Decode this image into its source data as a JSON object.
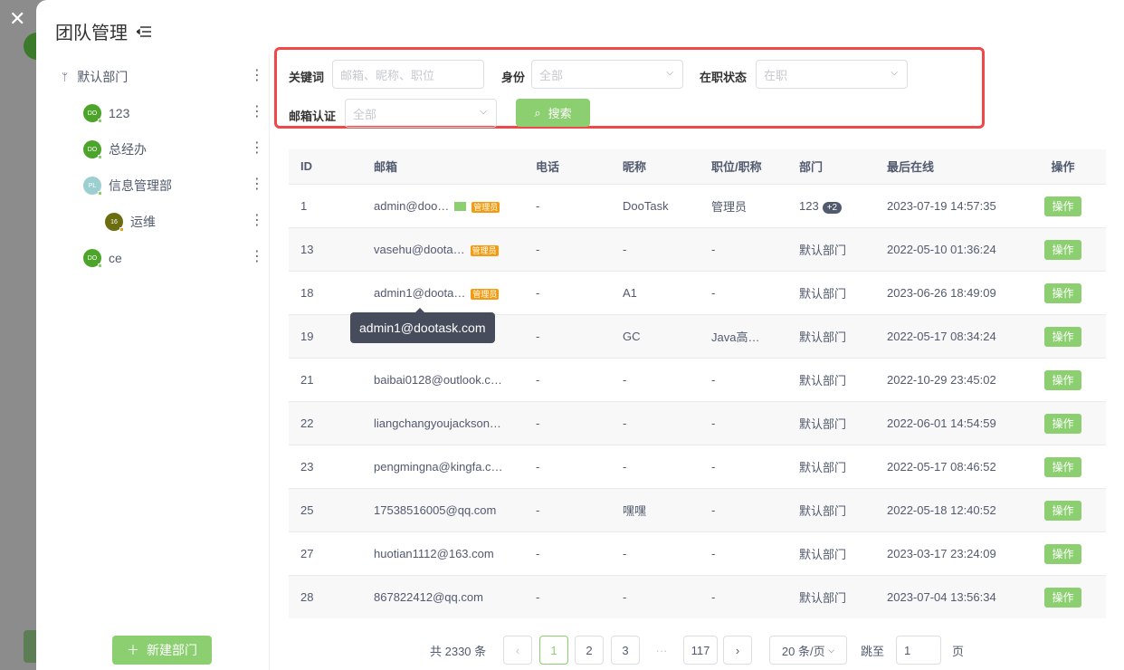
{
  "title": "团队管理",
  "close_label": "✕",
  "departments": [
    {
      "name": "默认部门",
      "icon": "org-tree-icon"
    },
    {
      "name": "123",
      "avatar": "DO",
      "color": "#4ca42a"
    },
    {
      "name": "总经办",
      "avatar": "DO",
      "color": "#4ca42a"
    },
    {
      "name": "信息管理部",
      "avatar": "PL",
      "color": "#9ccfd0"
    },
    {
      "name": "运维",
      "avatar": "16",
      "color": "#6c6c10"
    },
    {
      "name": "ce",
      "avatar": "DO",
      "color": "#4ca42a"
    }
  ],
  "new_dept_label": "新建部门",
  "filter": {
    "keyword_label": "关键词",
    "keyword_placeholder": "邮箱、昵称、职位",
    "identity_label": "身份",
    "identity_value": "全部",
    "status_label": "在职状态",
    "status_value": "在职",
    "email_label": "邮箱认证",
    "email_value": "全部",
    "search_label": "搜索"
  },
  "table": {
    "headers": [
      "ID",
      "邮箱",
      "电话",
      "昵称",
      "职位/职称",
      "部门",
      "最后在线",
      "操作"
    ],
    "rows": [
      {
        "id": "1",
        "email": "admin@doo…",
        "verified": true,
        "admin": "管理员",
        "phone": "-",
        "nick": "DooTask",
        "pos": "管理员",
        "dept": "123",
        "extra": "+2",
        "online": "2023-07-19 14:57:35",
        "op": "操作"
      },
      {
        "id": "13",
        "email": "vasehu@doota…",
        "admin": "管理员",
        "phone": "-",
        "nick": "-",
        "pos": "-",
        "dept": "默认部门",
        "online": "2022-05-10 01:36:24",
        "op": "操作"
      },
      {
        "id": "18",
        "email": "admin1@doota…",
        "admin": "管理员",
        "phone": "-",
        "nick": "A1",
        "pos": "-",
        "dept": "默认部门",
        "online": "2023-06-26 18:49:09",
        "op": "操作"
      },
      {
        "id": "19",
        "email": "",
        "phone": "-",
        "nick": "GC",
        "pos": "Java高…",
        "dept": "默认部门",
        "online": "2022-05-17 08:34:24",
        "op": "操作"
      },
      {
        "id": "21",
        "email": "baibai0128@outlook.c…",
        "phone": "-",
        "nick": "-",
        "pos": "-",
        "dept": "默认部门",
        "online": "2022-10-29 23:45:02",
        "op": "操作"
      },
      {
        "id": "22",
        "email": "liangchangyoujackson…",
        "phone": "-",
        "nick": "-",
        "pos": "-",
        "dept": "默认部门",
        "online": "2022-06-01 14:54:59",
        "op": "操作"
      },
      {
        "id": "23",
        "email": "pengmingna@kingfa.c…",
        "phone": "-",
        "nick": "-",
        "pos": "-",
        "dept": "默认部门",
        "online": "2022-05-17 08:46:52",
        "op": "操作"
      },
      {
        "id": "25",
        "email": "17538516005@qq.com",
        "phone": "-",
        "nick": "嘿嘿",
        "pos": "-",
        "dept": "默认部门",
        "online": "2022-05-18 12:40:52",
        "op": "操作"
      },
      {
        "id": "27",
        "email": "huotian1112@163.com",
        "phone": "-",
        "nick": "-",
        "pos": "-",
        "dept": "默认部门",
        "online": "2023-03-17 23:24:09",
        "op": "操作"
      },
      {
        "id": "28",
        "email": "867822412@qq.com",
        "phone": "-",
        "nick": "-",
        "pos": "-",
        "dept": "默认部门",
        "online": "2023-07-04 13:56:34",
        "op": "操作"
      }
    ]
  },
  "tooltip": "admin1@dootask.com",
  "pagination": {
    "total": "共 2330 条",
    "pages": [
      "1",
      "2",
      "3",
      "···",
      "117"
    ],
    "current": "1",
    "page_size": "20 条/页",
    "jump_label": "跳至",
    "jump_value": "1",
    "page_suffix": "页"
  },
  "colors": {
    "accent": "#8bcf70",
    "highlight_border": "#f04848",
    "admin_tag": "#f39c12"
  }
}
